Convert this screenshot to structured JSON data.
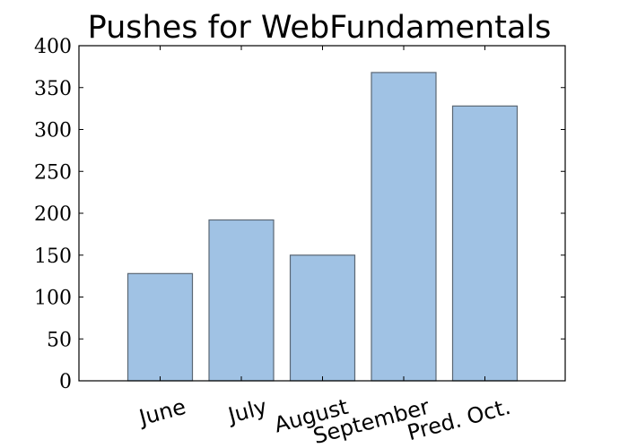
{
  "chart_data": {
    "type": "bar",
    "title": "Pushes for WebFundamentals",
    "xlabel": "",
    "ylabel": "",
    "categories": [
      "June",
      "July",
      "August",
      "September",
      "Pred. Oct."
    ],
    "values": [
      128,
      192,
      150,
      368,
      328
    ],
    "ylim": [
      0,
      400
    ],
    "yticks": [
      0,
      50,
      100,
      150,
      200,
      250,
      300,
      350,
      400
    ],
    "ytick_labels": [
      "0",
      "50",
      "100",
      "150",
      "200",
      "250",
      "300",
      "350",
      "400"
    ],
    "xtick_rotation_deg": 15,
    "bar_color": "#a0c2e4",
    "bar_edge_color": "#5b6774",
    "grid": false,
    "legend": "none"
  }
}
